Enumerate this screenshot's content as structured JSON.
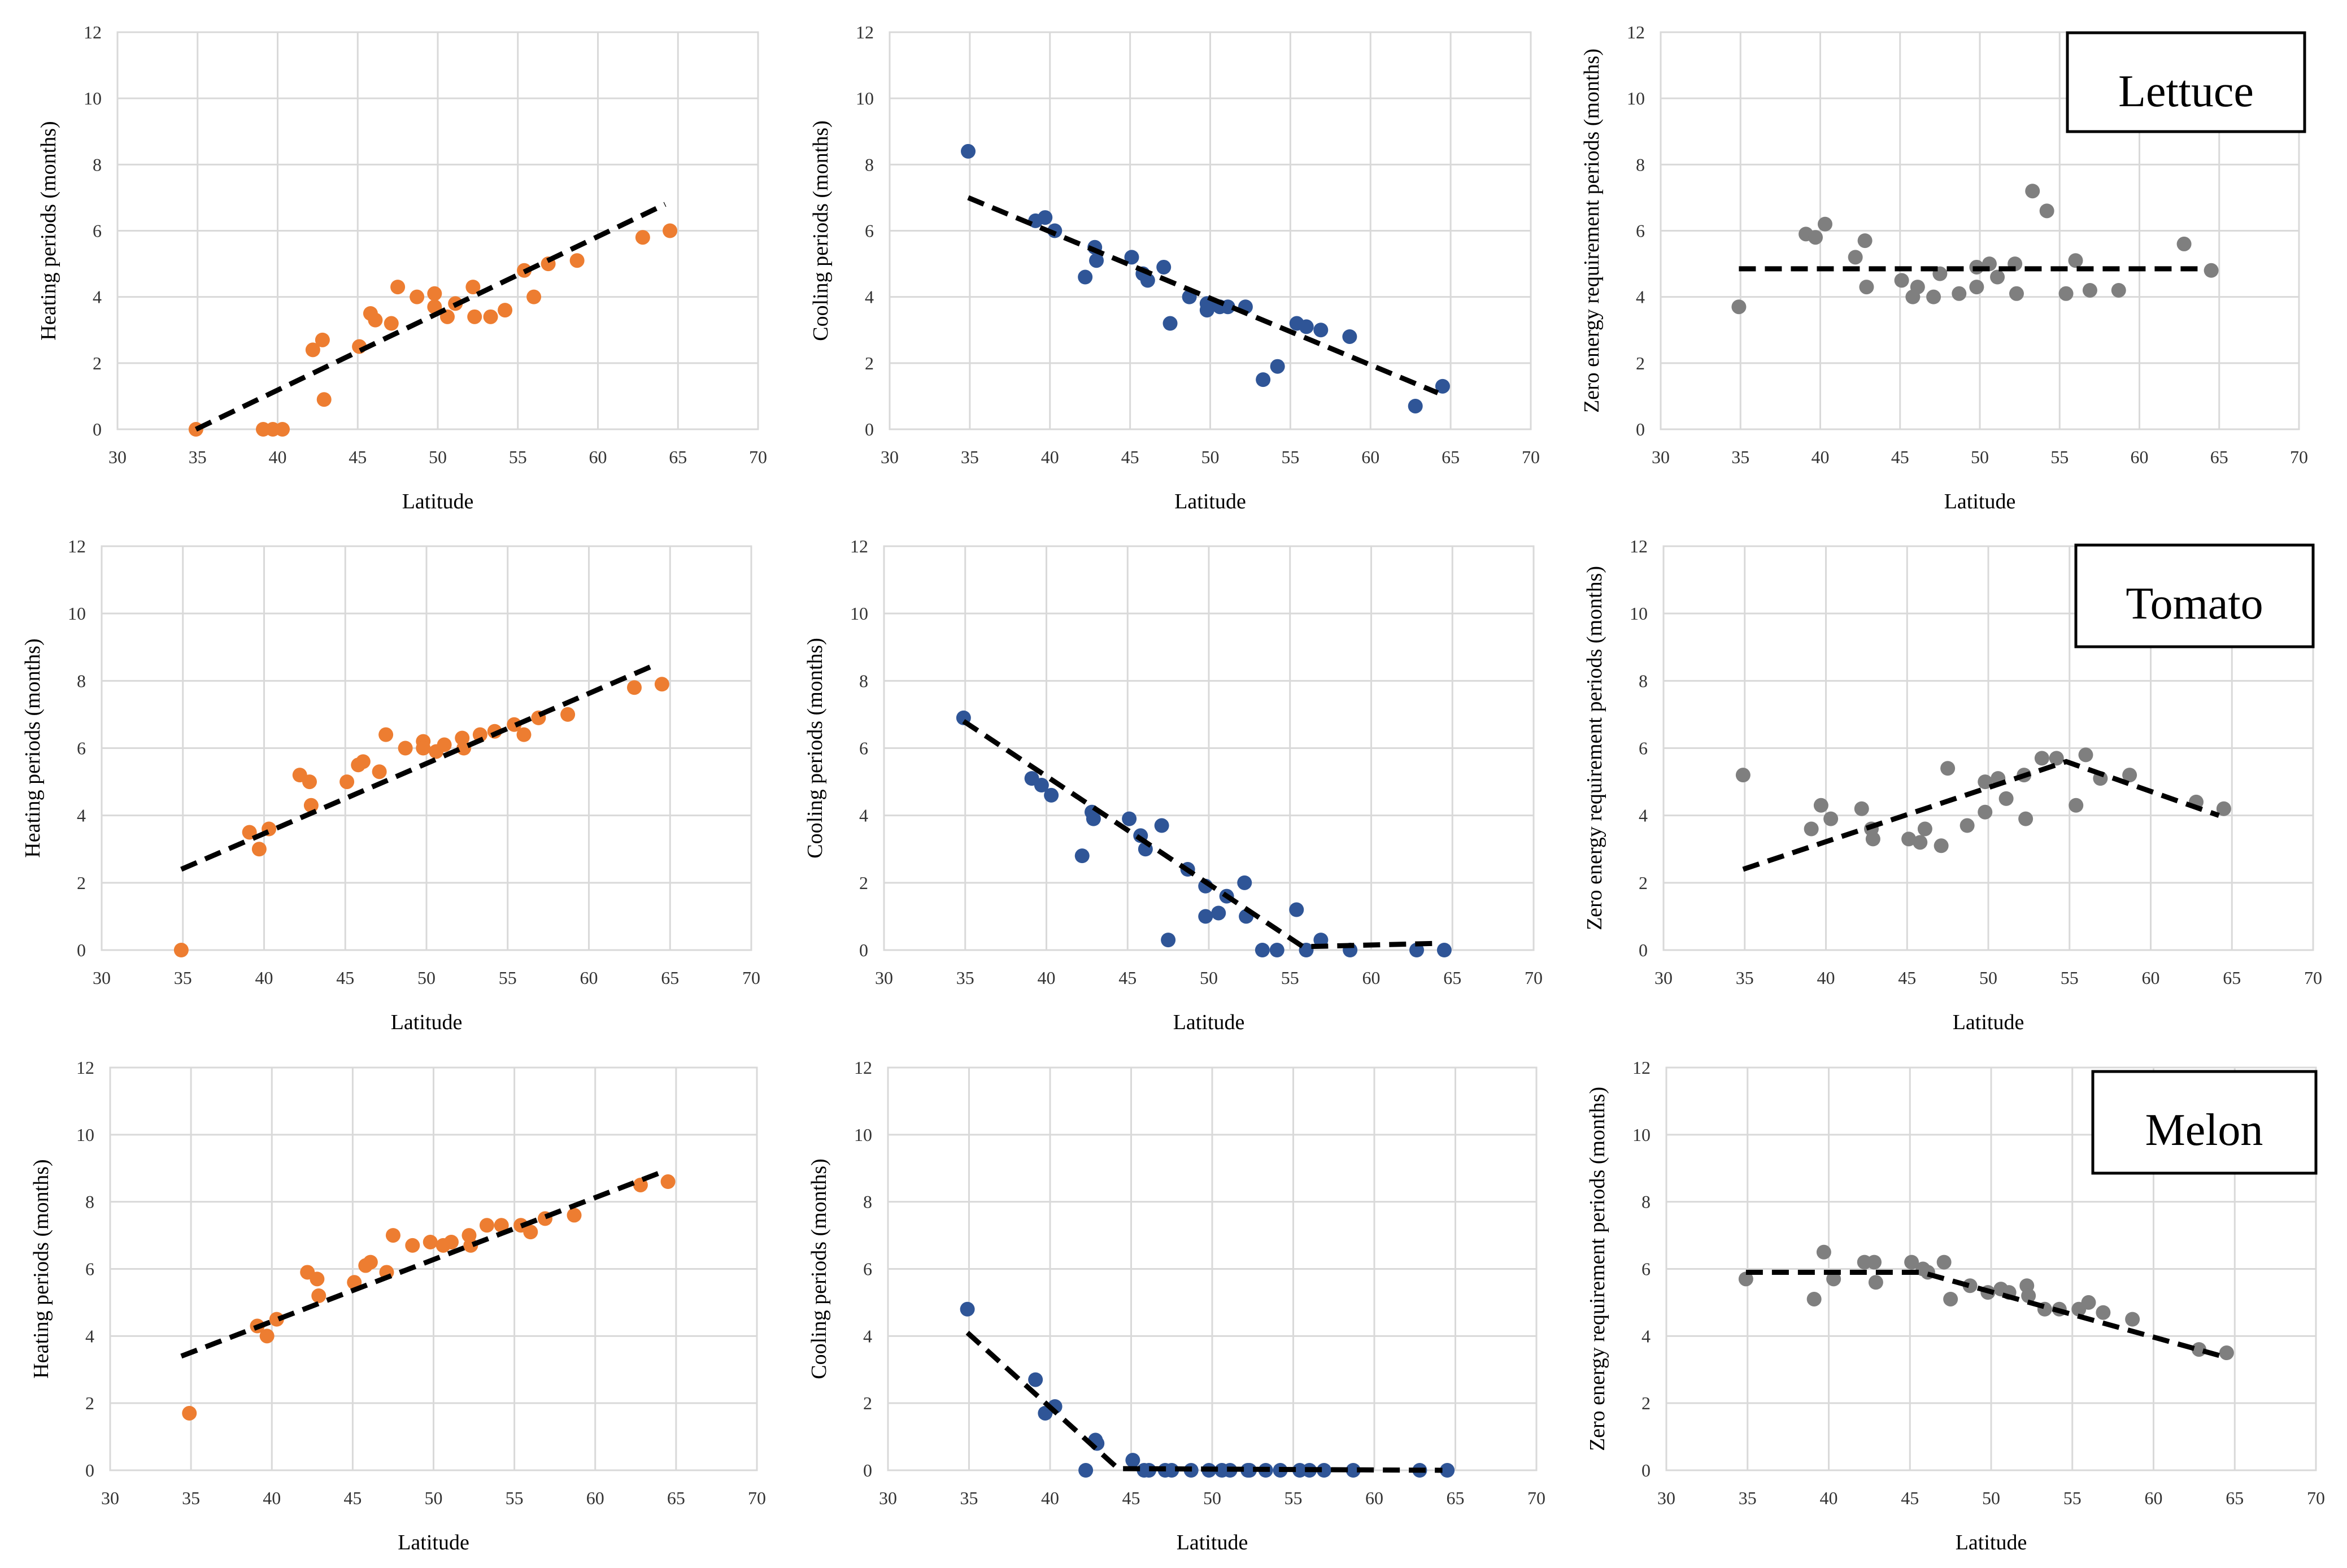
{
  "colors": {
    "heating": "#ED7D31",
    "cooling": "#2F5597",
    "zero": "#7F7F7F",
    "trend": "#000000",
    "grid": "#D9D9D9"
  },
  "crops": [
    "Lettuce",
    "Tomato",
    "Melon"
  ],
  "chart_data": [
    {
      "id": "lettuce-heating",
      "type": "scatter",
      "crop": "Lettuce",
      "ylabel": "Heating periods (months)",
      "xlabel": "Latitude",
      "xlim": [
        30,
        70
      ],
      "ylim": [
        0,
        12
      ],
      "xticks": [
        30,
        35,
        40,
        45,
        50,
        55,
        60,
        65,
        70
      ],
      "yticks": [
        0,
        2,
        4,
        6,
        8,
        10,
        12
      ],
      "color": "heating",
      "points": [
        [
          34.9,
          0
        ],
        [
          39.1,
          0
        ],
        [
          39.7,
          0
        ],
        [
          40.3,
          0
        ],
        [
          42.2,
          2.4
        ],
        [
          42.8,
          2.7
        ],
        [
          42.9,
          0.9
        ],
        [
          45.1,
          2.5
        ],
        [
          45.8,
          3.5
        ],
        [
          46.1,
          3.3
        ],
        [
          47.1,
          3.2
        ],
        [
          47.5,
          4.3
        ],
        [
          48.7,
          4.0
        ],
        [
          49.8,
          4.1
        ],
        [
          49.8,
          3.7
        ],
        [
          50.6,
          3.4
        ],
        [
          51.1,
          3.8
        ],
        [
          52.2,
          4.3
        ],
        [
          52.3,
          3.4
        ],
        [
          53.3,
          3.4
        ],
        [
          54.2,
          3.6
        ],
        [
          55.4,
          4.8
        ],
        [
          56.0,
          4.0
        ],
        [
          56.9,
          5.0
        ],
        [
          58.7,
          5.1
        ],
        [
          62.8,
          5.8
        ],
        [
          64.5,
          6.0
        ]
      ],
      "trend": [
        [
          34.9,
          0
        ],
        [
          64.2,
          6.8
        ]
      ]
    },
    {
      "id": "lettuce-cooling",
      "type": "scatter",
      "crop": "Lettuce",
      "ylabel": "Cooling periods (months)",
      "xlabel": "Latitude",
      "xlim": [
        30,
        70
      ],
      "ylim": [
        0,
        12
      ],
      "xticks": [
        30,
        35,
        40,
        45,
        50,
        55,
        60,
        65,
        70
      ],
      "yticks": [
        0,
        2,
        4,
        6,
        8,
        10,
        12
      ],
      "color": "cooling",
      "points": [
        [
          34.9,
          8.4
        ],
        [
          39.1,
          6.3
        ],
        [
          39.7,
          6.4
        ],
        [
          40.3,
          6.0
        ],
        [
          42.2,
          4.6
        ],
        [
          42.8,
          5.5
        ],
        [
          42.9,
          5.1
        ],
        [
          45.1,
          5.2
        ],
        [
          45.8,
          4.7
        ],
        [
          46.1,
          4.5
        ],
        [
          47.1,
          4.9
        ],
        [
          47.5,
          3.2
        ],
        [
          48.7,
          4.0
        ],
        [
          49.8,
          3.6
        ],
        [
          49.8,
          3.8
        ],
        [
          50.6,
          3.7
        ],
        [
          51.1,
          3.7
        ],
        [
          52.2,
          3.7
        ],
        [
          53.3,
          1.5
        ],
        [
          54.2,
          1.9
        ],
        [
          55.4,
          3.2
        ],
        [
          56.0,
          3.1
        ],
        [
          56.9,
          3.0
        ],
        [
          58.7,
          2.8
        ],
        [
          62.8,
          0.7
        ],
        [
          64.5,
          1.3
        ]
      ],
      "trend": [
        [
          34.9,
          7.0
        ],
        [
          64.2,
          1.1
        ]
      ]
    },
    {
      "id": "lettuce-zero",
      "type": "scatter",
      "crop": "Lettuce",
      "ylabel": "Zero energy requirement periods (months)",
      "xlabel": "Latitude",
      "xlim": [
        30,
        70
      ],
      "ylim": [
        0,
        12
      ],
      "xticks": [
        30,
        35,
        40,
        45,
        50,
        55,
        60,
        65,
        70
      ],
      "yticks": [
        0,
        2,
        4,
        6,
        8,
        10,
        12
      ],
      "color": "zero",
      "points": [
        [
          34.9,
          3.7
        ],
        [
          39.1,
          5.9
        ],
        [
          39.7,
          5.8
        ],
        [
          40.3,
          6.2
        ],
        [
          42.2,
          5.2
        ],
        [
          42.8,
          5.7
        ],
        [
          42.9,
          4.3
        ],
        [
          45.1,
          4.5
        ],
        [
          45.8,
          4.0
        ],
        [
          46.1,
          4.3
        ],
        [
          47.1,
          4.0
        ],
        [
          47.5,
          4.7
        ],
        [
          48.7,
          4.1
        ],
        [
          49.8,
          4.3
        ],
        [
          49.8,
          4.9
        ],
        [
          50.6,
          5.0
        ],
        [
          51.1,
          4.6
        ],
        [
          52.2,
          5.0
        ],
        [
          52.3,
          4.1
        ],
        [
          53.3,
          7.2
        ],
        [
          54.2,
          6.6
        ],
        [
          55.4,
          4.1
        ],
        [
          56.0,
          5.1
        ],
        [
          56.9,
          4.2
        ],
        [
          58.7,
          4.2
        ],
        [
          62.8,
          5.6
        ],
        [
          64.5,
          4.8
        ]
      ],
      "trend": [
        [
          34.9,
          4.85
        ],
        [
          64.2,
          4.85
        ]
      ]
    },
    {
      "id": "tomato-heating",
      "type": "scatter",
      "crop": "Tomato",
      "ylabel": "Heating periods (months)",
      "xlabel": "Latitude",
      "xlim": [
        30,
        70
      ],
      "ylim": [
        0,
        12
      ],
      "xticks": [
        30,
        35,
        40,
        45,
        50,
        55,
        60,
        65,
        70
      ],
      "yticks": [
        0,
        2,
        4,
        6,
        8,
        10,
        12
      ],
      "color": "heating",
      "points": [
        [
          34.9,
          0
        ],
        [
          39.1,
          3.5
        ],
        [
          39.7,
          3.0
        ],
        [
          40.3,
          3.6
        ],
        [
          42.2,
          5.2
        ],
        [
          42.8,
          5.0
        ],
        [
          42.9,
          4.3
        ],
        [
          45.1,
          5.0
        ],
        [
          45.8,
          5.5
        ],
        [
          46.1,
          5.6
        ],
        [
          47.1,
          5.3
        ],
        [
          47.5,
          6.4
        ],
        [
          48.7,
          6.0
        ],
        [
          49.8,
          6.2
        ],
        [
          49.8,
          6.0
        ],
        [
          50.6,
          5.9
        ],
        [
          51.1,
          6.1
        ],
        [
          52.2,
          6.3
        ],
        [
          52.3,
          6.0
        ],
        [
          53.3,
          6.4
        ],
        [
          54.2,
          6.5
        ],
        [
          55.4,
          6.7
        ],
        [
          56.0,
          6.4
        ],
        [
          56.9,
          6.9
        ],
        [
          58.7,
          7.0
        ],
        [
          62.8,
          7.8
        ],
        [
          64.5,
          7.9
        ]
      ],
      "trend": [
        [
          34.9,
          2.4
        ],
        [
          64.2,
          8.5
        ]
      ]
    },
    {
      "id": "tomato-cooling",
      "type": "scatter",
      "crop": "Tomato",
      "ylabel": "Cooling periods (months)",
      "xlabel": "Latitude",
      "xlim": [
        30,
        70
      ],
      "ylim": [
        0,
        12
      ],
      "xticks": [
        30,
        35,
        40,
        45,
        50,
        55,
        60,
        65,
        70
      ],
      "yticks": [
        0,
        2,
        4,
        6,
        8,
        10,
        12
      ],
      "color": "cooling",
      "points": [
        [
          34.9,
          6.9
        ],
        [
          39.1,
          5.1
        ],
        [
          39.7,
          4.9
        ],
        [
          40.3,
          4.6
        ],
        [
          42.2,
          2.8
        ],
        [
          42.8,
          4.1
        ],
        [
          42.9,
          3.9
        ],
        [
          45.1,
          3.9
        ],
        [
          45.8,
          3.4
        ],
        [
          46.1,
          3.0
        ],
        [
          47.1,
          3.7
        ],
        [
          47.5,
          0.3
        ],
        [
          48.7,
          2.4
        ],
        [
          49.8,
          1.9
        ],
        [
          49.8,
          1.0
        ],
        [
          50.6,
          1.1
        ],
        [
          51.1,
          1.6
        ],
        [
          52.2,
          2.0
        ],
        [
          52.3,
          1.0
        ],
        [
          53.3,
          0
        ],
        [
          54.2,
          0
        ],
        [
          55.4,
          1.2
        ],
        [
          56.0,
          0
        ],
        [
          56.9,
          0.3
        ],
        [
          58.7,
          0
        ],
        [
          62.8,
          0
        ],
        [
          64.5,
          0
        ]
      ],
      "trend": [
        [
          34.9,
          6.8
        ],
        [
          55.8,
          0.1
        ],
        [
          64.2,
          0.2
        ]
      ]
    },
    {
      "id": "tomato-zero",
      "type": "scatter",
      "crop": "Tomato",
      "ylabel": "Zero energy requirement periods (months)",
      "xlabel": "Latitude",
      "xlim": [
        30,
        70
      ],
      "ylim": [
        0,
        12
      ],
      "xticks": [
        30,
        35,
        40,
        45,
        50,
        55,
        60,
        65,
        70
      ],
      "yticks": [
        0,
        2,
        4,
        6,
        8,
        10,
        12
      ],
      "color": "zero",
      "points": [
        [
          34.9,
          5.2
        ],
        [
          39.1,
          3.6
        ],
        [
          39.7,
          4.3
        ],
        [
          40.3,
          3.9
        ],
        [
          42.2,
          4.2
        ],
        [
          42.8,
          3.6
        ],
        [
          42.9,
          3.3
        ],
        [
          45.1,
          3.3
        ],
        [
          45.8,
          3.2
        ],
        [
          46.1,
          3.6
        ],
        [
          47.1,
          3.1
        ],
        [
          47.5,
          5.4
        ],
        [
          48.7,
          3.7
        ],
        [
          49.8,
          4.1
        ],
        [
          49.8,
          5.0
        ],
        [
          50.6,
          5.1
        ],
        [
          51.1,
          4.5
        ],
        [
          52.2,
          5.2
        ],
        [
          52.3,
          3.9
        ],
        [
          53.3,
          5.7
        ],
        [
          54.2,
          5.7
        ],
        [
          55.4,
          4.3
        ],
        [
          56.0,
          5.8
        ],
        [
          56.9,
          5.1
        ],
        [
          58.7,
          5.2
        ],
        [
          62.8,
          4.4
        ],
        [
          64.5,
          4.2
        ]
      ],
      "trend": [
        [
          34.9,
          2.4
        ],
        [
          54.8,
          5.6
        ],
        [
          64.2,
          4.0
        ]
      ]
    },
    {
      "id": "melon-heating",
      "type": "scatter",
      "crop": "Melon",
      "ylabel": "Heating periods (months)",
      "xlabel": "Latitude",
      "xlim": [
        30,
        70
      ],
      "ylim": [
        0,
        12
      ],
      "xticks": [
        30,
        35,
        40,
        45,
        50,
        55,
        60,
        65,
        70
      ],
      "yticks": [
        0,
        2,
        4,
        6,
        8,
        10,
        12
      ],
      "color": "heating",
      "points": [
        [
          34.9,
          1.7
        ],
        [
          39.1,
          4.3
        ],
        [
          39.7,
          4.0
        ],
        [
          40.3,
          4.5
        ],
        [
          42.2,
          5.9
        ],
        [
          42.8,
          5.7
        ],
        [
          42.9,
          5.2
        ],
        [
          45.1,
          5.6
        ],
        [
          45.8,
          6.1
        ],
        [
          46.1,
          6.2
        ],
        [
          47.1,
          5.9
        ],
        [
          47.5,
          7.0
        ],
        [
          48.7,
          6.7
        ],
        [
          49.8,
          6.8
        ],
        [
          50.6,
          6.7
        ],
        [
          51.1,
          6.8
        ],
        [
          52.2,
          7.0
        ],
        [
          52.3,
          6.7
        ],
        [
          53.3,
          7.3
        ],
        [
          54.2,
          7.3
        ],
        [
          55.4,
          7.3
        ],
        [
          56.0,
          7.1
        ],
        [
          56.9,
          7.5
        ],
        [
          58.7,
          7.6
        ],
        [
          62.8,
          8.5
        ],
        [
          64.5,
          8.6
        ]
      ],
      "trend": [
        [
          34.4,
          3.4
        ],
        [
          64.2,
          8.9
        ]
      ]
    },
    {
      "id": "melon-cooling",
      "type": "scatter",
      "crop": "Melon",
      "ylabel": "Cooling periods (months)",
      "xlabel": "Latitude",
      "xlim": [
        30,
        70
      ],
      "ylim": [
        0,
        12
      ],
      "xticks": [
        30,
        35,
        40,
        45,
        50,
        55,
        60,
        65,
        70
      ],
      "yticks": [
        0,
        2,
        4,
        6,
        8,
        10,
        12
      ],
      "color": "cooling",
      "points": [
        [
          34.9,
          4.8
        ],
        [
          39.1,
          2.7
        ],
        [
          39.7,
          1.7
        ],
        [
          40.3,
          1.9
        ],
        [
          42.2,
          0
        ],
        [
          42.8,
          0.9
        ],
        [
          42.9,
          0.8
        ],
        [
          45.1,
          0.3
        ],
        [
          45.8,
          0
        ],
        [
          46.1,
          0
        ],
        [
          47.1,
          0
        ],
        [
          47.5,
          0
        ],
        [
          48.7,
          0
        ],
        [
          49.8,
          0
        ],
        [
          50.6,
          0
        ],
        [
          51.1,
          0
        ],
        [
          52.2,
          0
        ],
        [
          52.3,
          0
        ],
        [
          53.3,
          0
        ],
        [
          54.2,
          0
        ],
        [
          55.4,
          0
        ],
        [
          56.0,
          0
        ],
        [
          56.9,
          0
        ],
        [
          58.7,
          0
        ],
        [
          62.8,
          0
        ],
        [
          64.5,
          0
        ]
      ],
      "trend": [
        [
          34.9,
          4.1
        ],
        [
          44.2,
          0.05
        ],
        [
          64.2,
          0
        ]
      ]
    },
    {
      "id": "melon-zero",
      "type": "scatter",
      "crop": "Melon",
      "ylabel": "Zero energy requirement periods (months)",
      "xlabel": "Latitude",
      "xlim": [
        30,
        70
      ],
      "ylim": [
        0,
        12
      ],
      "xticks": [
        30,
        35,
        40,
        45,
        50,
        55,
        60,
        65,
        70
      ],
      "yticks": [
        0,
        2,
        4,
        6,
        8,
        10,
        12
      ],
      "color": "zero",
      "points": [
        [
          34.9,
          5.7
        ],
        [
          39.1,
          5.1
        ],
        [
          39.7,
          6.5
        ],
        [
          40.3,
          5.7
        ],
        [
          42.2,
          6.2
        ],
        [
          42.8,
          6.2
        ],
        [
          42.9,
          5.6
        ],
        [
          45.1,
          6.2
        ],
        [
          45.8,
          6.0
        ],
        [
          46.1,
          5.9
        ],
        [
          47.1,
          6.2
        ],
        [
          47.5,
          5.1
        ],
        [
          48.7,
          5.5
        ],
        [
          49.8,
          5.3
        ],
        [
          50.6,
          5.4
        ],
        [
          51.1,
          5.3
        ],
        [
          52.2,
          5.5
        ],
        [
          52.3,
          5.2
        ],
        [
          53.3,
          4.8
        ],
        [
          54.2,
          4.8
        ],
        [
          55.4,
          4.8
        ],
        [
          56.0,
          5.0
        ],
        [
          56.9,
          4.7
        ],
        [
          58.7,
          4.5
        ],
        [
          62.8,
          3.6
        ],
        [
          64.5,
          3.5
        ]
      ],
      "trend": [
        [
          34.9,
          5.9
        ],
        [
          45.7,
          5.9
        ],
        [
          64.2,
          3.4
        ]
      ]
    }
  ]
}
